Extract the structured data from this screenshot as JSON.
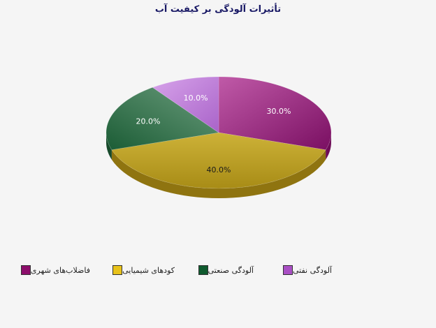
{
  "chart_data": {
    "type": "pie",
    "title": "تأثیرات آلودگی بر کیفیت آب",
    "categories": [
      "فاضلاب‌های  شهری",
      "کودهای شیمیایی",
      "آلودگی صنعتی",
      "آلودگی نفتی"
    ],
    "values": [
      30.0,
      40.0,
      20.0,
      10.0
    ],
    "labels": [
      "30.0%",
      "40.0%",
      "20.0%",
      "10.0%"
    ],
    "colors": [
      "#a63d8f",
      "#c4a92a",
      "#2f7a4e",
      "#b877d6"
    ],
    "legend_colors": [
      "#8c0e6b",
      "#e8c21a",
      "#0f5a2e",
      "#a94fc4"
    ],
    "legend_position": "bottom",
    "start_angle_deg": 0,
    "direction": "clockwise"
  }
}
